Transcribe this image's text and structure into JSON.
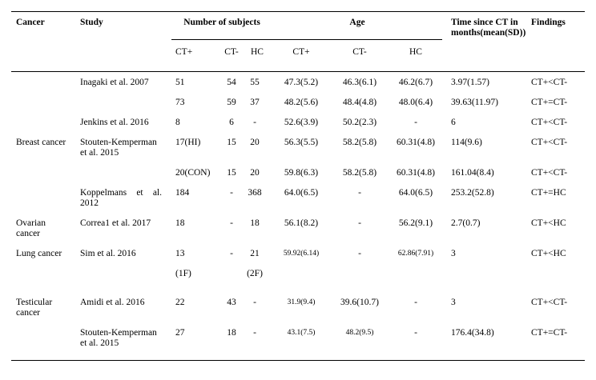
{
  "header": {
    "cancer": "Cancer",
    "study": "Study",
    "subjects_group": "Number of subjects",
    "age_group": "Age",
    "time": "Time since CT in months(mean(SD))",
    "findings": "Findings",
    "subcols": [
      "CT+",
      "CT-",
      "HC",
      "CT+",
      "CT-",
      "HC"
    ]
  },
  "rows": [
    {
      "cancer": "",
      "study": "Inagaki et al. 2007",
      "n": [
        "51",
        "54",
        "55"
      ],
      "age": [
        "47.3(5.2)",
        "46.3(6.1)",
        "46.2(6.7)"
      ],
      "time": "3.97(1.57)",
      "findings": "CT+<CT-"
    },
    {
      "cancer": "",
      "study": "",
      "n": [
        "73",
        "59",
        "37"
      ],
      "age": [
        "48.2(5.6)",
        "48.4(4.8)",
        "48.0(6.4)"
      ],
      "time": "39.63(11.97)",
      "findings": "CT+=CT-"
    },
    {
      "cancer": "",
      "study": "Jenkins et al. 2016",
      "n": [
        "8",
        "6",
        "-"
      ],
      "age": [
        "52.6(3.9)",
        "50.2(2.3)",
        "-"
      ],
      "time": "6",
      "findings": "CT+<CT-"
    },
    {
      "cancer": "Breast cancer",
      "study": "Stouten-Kemperman et al. 2015",
      "n": [
        "17(HI)",
        "15",
        "20"
      ],
      "age": [
        "56.3(5.5)",
        "58.2(5.8)",
        "60.31(4.8)"
      ],
      "time": "114(9.6)",
      "findings": "CT+<CT-"
    },
    {
      "cancer": "",
      "study": "",
      "n": [
        "20(CON)",
        "15",
        "20"
      ],
      "age": [
        "59.8(6.3)",
        "58.2(5.8)",
        "60.31(4.8)"
      ],
      "time": "161.04(8.4)",
      "findings": "CT+<CT-"
    },
    {
      "cancer": "",
      "study": "Koppelmans et al. 2012",
      "n": [
        "184",
        "-",
        "368"
      ],
      "age": [
        "64.0(6.5)",
        "-",
        "64.0(6.5)"
      ],
      "time": "253.2(52.8)",
      "findings": "CT+=HC"
    },
    {
      "cancer": "Ovarian cancer",
      "study": "Correa1 et al. 2017",
      "n": [
        "18",
        "-",
        "18"
      ],
      "age": [
        "56.1(8.2)",
        "-",
        "56.2(9.1)"
      ],
      "time": "2.7(0.7)",
      "findings": "CT+<HC"
    },
    {
      "cancer": "Lung cancer",
      "study": "Sim et al. 2016",
      "n": [
        "13",
        "-",
        "21"
      ],
      "age": [
        "59.92(6.14)",
        "-",
        "62.86(7.91)"
      ],
      "age_small": [
        true,
        false,
        true
      ],
      "time": "3",
      "findings": "CT+<HC"
    },
    {
      "cancer": "",
      "study": "",
      "n": [
        "(1F)",
        "",
        "(2F)"
      ],
      "age": [
        "",
        "",
        ""
      ],
      "time": "",
      "findings": "",
      "spacer": true
    },
    {
      "cancer": "Testicular cancer",
      "study": "Amidi et al. 2016",
      "n": [
        "22",
        "43",
        "-"
      ],
      "age": [
        "31.9(9.4)",
        "39.6(10.7)",
        "-"
      ],
      "age_small": [
        true,
        false,
        false
      ],
      "time": "3",
      "findings": "CT+<CT-"
    },
    {
      "cancer": "",
      "study": "Stouten-Kemperman et al. 2015",
      "n": [
        "27",
        "18",
        "-"
      ],
      "age": [
        "43.1(7.5)",
        "48.2(9.5)",
        "-"
      ],
      "age_small": [
        true,
        true,
        false
      ],
      "time": "176.4(34.8)",
      "findings": "CT+=CT-"
    }
  ]
}
